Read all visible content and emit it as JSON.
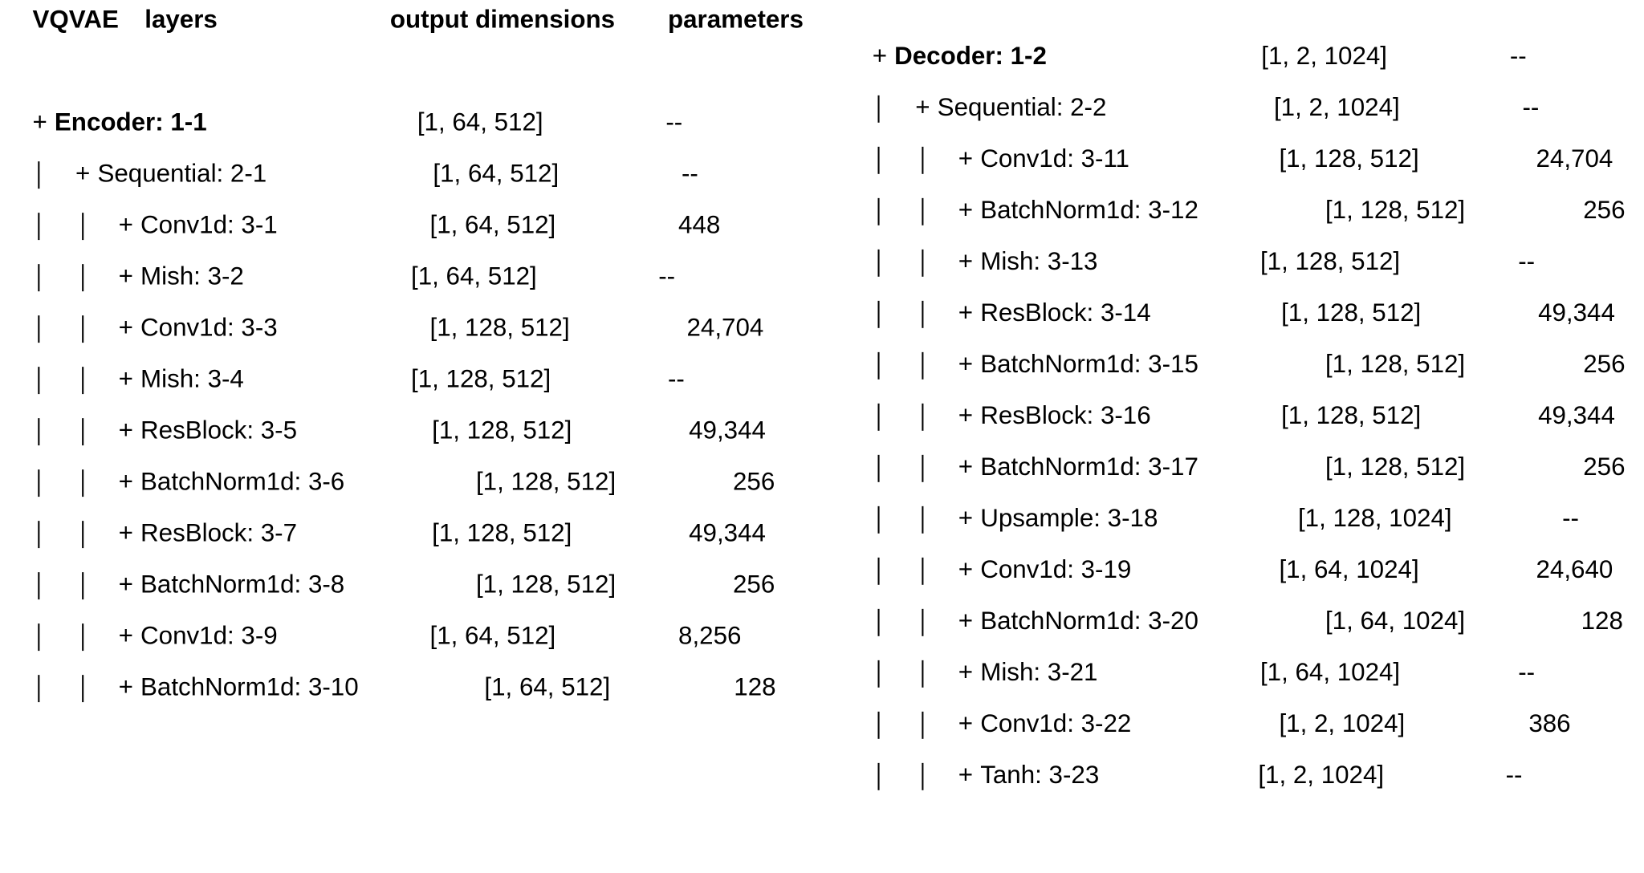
{
  "header": {
    "model": "VQVAE",
    "layers": "layers",
    "output": "output dimensions",
    "params": "parameters"
  },
  "encoder": [
    {
      "marker": "+",
      "name": "Encoder: 1-1",
      "dims": "[1, 64, 512]",
      "params": "--"
    },
    {
      "marker": "+",
      "name": "Sequential: 2-1",
      "dims": "[1, 64, 512]",
      "params": "--"
    },
    {
      "marker": "+",
      "name": "Conv1d: 3-1",
      "dims": "[1, 64, 512]",
      "params": "448"
    },
    {
      "marker": "+",
      "name": "Mish: 3-2",
      "dims": "[1, 64, 512]",
      "params": "--"
    },
    {
      "marker": "+",
      "name": "Conv1d: 3-3",
      "dims": "[1, 128, 512]",
      "params": "24,704"
    },
    {
      "marker": "+",
      "name": "Mish: 3-4",
      "dims": "[1, 128, 512]",
      "params": "--"
    },
    {
      "marker": "+",
      "name": "ResBlock: 3-5",
      "dims": "[1, 128, 512]",
      "params": "49,344"
    },
    {
      "marker": "+",
      "name": "BatchNorm1d: 3-6",
      "dims": "[1, 128, 512]",
      "params": "256"
    },
    {
      "marker": "+",
      "name": "ResBlock: 3-7",
      "dims": "[1, 128, 512]",
      "params": "49,344"
    },
    {
      "marker": "+",
      "name": "BatchNorm1d: 3-8",
      "dims": "[1, 128, 512]",
      "params": "256"
    },
    {
      "marker": "+",
      "name": "Conv1d: 3-9",
      "dims": "[1, 64, 512]",
      "params": "8,256"
    },
    {
      "marker": "+",
      "name": "BatchNorm1d: 3-10",
      "dims": "[1, 64, 512]",
      "params": "128"
    }
  ],
  "decoder": [
    {
      "marker": "+",
      "name": "Decoder: 1-2",
      "dims": "[1, 2, 1024]",
      "params": "--"
    },
    {
      "marker": "+",
      "name": "Sequential: 2-2",
      "dims": "[1, 2, 1024]",
      "params": "--"
    },
    {
      "marker": "+",
      "name": "Conv1d: 3-11",
      "dims": "[1, 128, 512]",
      "params": "24,704"
    },
    {
      "marker": "+",
      "name": "BatchNorm1d: 3-12",
      "dims": "[1, 128, 512]",
      "params": "256"
    },
    {
      "marker": "+",
      "name": "Mish: 3-13",
      "dims": "[1, 128, 512]",
      "params": "--"
    },
    {
      "marker": "+",
      "name": "ResBlock: 3-14",
      "dims": "[1, 128, 512]",
      "params": "49,344"
    },
    {
      "marker": "+",
      "name": "BatchNorm1d: 3-15",
      "dims": "[1, 128, 512]",
      "params": "256"
    },
    {
      "marker": "+",
      "name": "ResBlock: 3-16",
      "dims": "[1, 128, 512]",
      "params": "49,344"
    },
    {
      "marker": "+",
      "name": "BatchNorm1d: 3-17",
      "dims": "[1, 128, 512]",
      "params": "256"
    },
    {
      "marker": "+",
      "name": "Upsample: 3-18",
      "dims": "[1, 128, 1024]",
      "params": "--"
    },
    {
      "marker": "+",
      "name": "Conv1d: 3-19",
      "dims": "[1, 64, 1024]",
      "params": "24,640"
    },
    {
      "marker": "+",
      "name": "BatchNorm1d: 3-20",
      "dims": "[1, 64, 1024]",
      "params": "128"
    },
    {
      "marker": "+",
      "name": "Mish: 3-21",
      "dims": "[1, 64, 1024]",
      "params": "--"
    },
    {
      "marker": "+",
      "name": "Conv1d: 3-22",
      "dims": "[1, 2, 1024]",
      "params": "386"
    },
    {
      "marker": "+",
      "name": "Tanh: 3-23",
      "dims": "[1, 2, 1024]",
      "params": "--"
    }
  ]
}
